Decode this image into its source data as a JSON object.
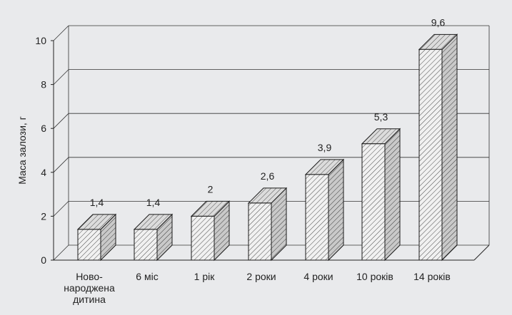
{
  "chart_data": {
    "type": "bar",
    "title": "",
    "xlabel": "",
    "ylabel": "Маса залози, г",
    "ylim": [
      0,
      10
    ],
    "yticks": [
      0,
      2,
      4,
      6,
      8,
      10
    ],
    "grid": true,
    "style": "3d-hatched",
    "categories": [
      [
        "Ново-",
        "народжена",
        "дитина"
      ],
      [
        "6 міс"
      ],
      [
        "1 рік"
      ],
      [
        "2 роки"
      ],
      [
        "4 роки"
      ],
      [
        "10 років"
      ],
      [
        "14 років"
      ]
    ],
    "values": [
      1.4,
      1.4,
      2,
      2.6,
      3.9,
      5.3,
      9.6
    ],
    "value_labels": [
      "1,4",
      "1,4",
      "2",
      "2,6",
      "3,9",
      "5,3",
      "9,6"
    ]
  },
  "colors": {
    "background": "#e9eaec",
    "bar_face": "#f1f1f1",
    "bar_top": "#dcdcdc",
    "bar_side": "#c9c9c9",
    "hatch": "#4a4a4a",
    "grid": "#333333",
    "axis": "#222222"
  }
}
